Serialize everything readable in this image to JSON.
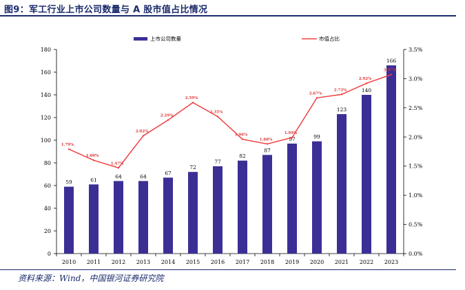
{
  "figure": {
    "title": "图9：军工行业上市公司数量与 A 股市值占比情况",
    "source": "资料来源：Wind，中国银河证券研究院"
  },
  "chart_data": {
    "type": "bar",
    "categories": [
      "2010",
      "2011",
      "2012",
      "2013",
      "2014",
      "2015",
      "2016",
      "2017",
      "2018",
      "2019",
      "2020",
      "2021",
      "2022",
      "2023"
    ],
    "series": [
      {
        "name": "上市公司数量",
        "type": "bar",
        "axis": "left",
        "color": "#3b2f96",
        "values": [
          59,
          61,
          64,
          64,
          67,
          72,
          77,
          82,
          87,
          97,
          99,
          123,
          140,
          166
        ],
        "labels": [
          "59",
          "61",
          "64",
          "64",
          "67",
          "72",
          "77",
          "82",
          "87",
          "97",
          "99",
          "123",
          "140",
          "166"
        ]
      },
      {
        "name": "市值占比",
        "type": "line",
        "axis": "right",
        "color": "#f04040",
        "values": [
          1.79,
          1.6,
          1.47,
          2.02,
          2.29,
          2.59,
          2.35,
          1.96,
          1.88,
          1.99,
          2.67,
          2.73,
          2.92,
          3.07
        ],
        "labels": [
          "1.79%",
          "1.60%",
          "1.47%",
          "2.02%",
          "2.29%",
          "2.59%",
          "2.35%",
          "1.96%",
          "1.88%",
          "1.99%",
          "2.67%",
          "2.73%",
          "2.92%",
          "3.07%"
        ]
      }
    ],
    "y_left": {
      "ylim": [
        0,
        180
      ],
      "ticks": [
        "0",
        "20",
        "40",
        "60",
        "80",
        "100",
        "120",
        "140",
        "160",
        "180"
      ]
    },
    "y_right": {
      "ylim": [
        0,
        3.5
      ],
      "ticks": [
        "0.0%",
        "0.5%",
        "1.0%",
        "1.5%",
        "2.0%",
        "2.5%",
        "3.0%",
        "3.5%"
      ]
    },
    "legend_position": "top",
    "grid": false
  }
}
